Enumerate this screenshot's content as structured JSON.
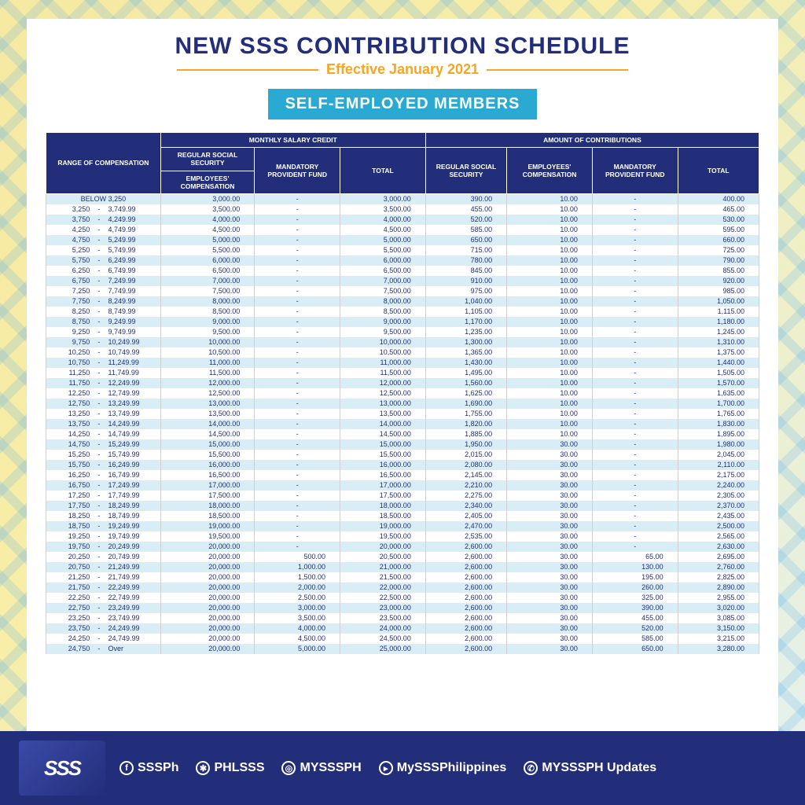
{
  "title": "NEW SSS CONTRIBUTION SCHEDULE",
  "subtitle": "Effective January 2021",
  "badge": "SELF-EMPLOYED MEMBERS",
  "colors": {
    "header_bg": "#232e7a",
    "header_fg": "#ffffff",
    "badge_bg": "#2aa9d2",
    "subtitle": "#f5a623",
    "row_alt": "#d8edf5",
    "row_bg": "#ffffff"
  },
  "headers": {
    "group_msc": "MONTHLY SALARY CREDIT",
    "group_contrib": "AMOUNT OF CONTRIBUTIONS",
    "range": "RANGE OF COMPENSATION",
    "rss": "REGULAR SOCIAL SECURITY",
    "ec": "EMPLOYEES' COMPENSATION",
    "mpf": "MANDATORY PROVIDENT FUND",
    "total": "TOTAL",
    "c_rss": "REGULAR SOCIAL SECURITY",
    "c_ec": "EMPLOYEES' COMPENSATION",
    "c_mpf": "MANDATORY PROVIDENT FUND",
    "c_total": "TOTAL"
  },
  "rows": [
    {
      "lo": "",
      "dash": "BELOW 3,250",
      "hi": "",
      "msc": "3,000.00",
      "mpf": "-",
      "mtot": "3,000.00",
      "rss": "390.00",
      "ec": "10.00",
      "cmpf": "-",
      "ctot": "400.00"
    },
    {
      "lo": "3,250",
      "dash": "-",
      "hi": "3,749.99",
      "msc": "3,500.00",
      "mpf": "-",
      "mtot": "3,500.00",
      "rss": "455.00",
      "ec": "10.00",
      "cmpf": "-",
      "ctot": "465.00"
    },
    {
      "lo": "3,750",
      "dash": "-",
      "hi": "4,249.99",
      "msc": "4,000.00",
      "mpf": "-",
      "mtot": "4,000.00",
      "rss": "520.00",
      "ec": "10.00",
      "cmpf": "-",
      "ctot": "530.00"
    },
    {
      "lo": "4,250",
      "dash": "-",
      "hi": "4,749.99",
      "msc": "4,500.00",
      "mpf": "-",
      "mtot": "4,500.00",
      "rss": "585.00",
      "ec": "10.00",
      "cmpf": "-",
      "ctot": "595.00"
    },
    {
      "lo": "4,750",
      "dash": "-",
      "hi": "5,249.99",
      "msc": "5,000.00",
      "mpf": "-",
      "mtot": "5,000.00",
      "rss": "650.00",
      "ec": "10.00",
      "cmpf": "-",
      "ctot": "660.00"
    },
    {
      "lo": "5,250",
      "dash": "-",
      "hi": "5,749.99",
      "msc": "5,500.00",
      "mpf": "-",
      "mtot": "5,500.00",
      "rss": "715.00",
      "ec": "10.00",
      "cmpf": "-",
      "ctot": "725.00"
    },
    {
      "lo": "5,750",
      "dash": "-",
      "hi": "6,249.99",
      "msc": "6,000.00",
      "mpf": "-",
      "mtot": "6,000.00",
      "rss": "780.00",
      "ec": "10.00",
      "cmpf": "-",
      "ctot": "790.00"
    },
    {
      "lo": "6,250",
      "dash": "-",
      "hi": "6,749.99",
      "msc": "6,500.00",
      "mpf": "-",
      "mtot": "6,500.00",
      "rss": "845.00",
      "ec": "10.00",
      "cmpf": "-",
      "ctot": "855.00"
    },
    {
      "lo": "6,750",
      "dash": "-",
      "hi": "7,249.99",
      "msc": "7,000.00",
      "mpf": "-",
      "mtot": "7,000.00",
      "rss": "910.00",
      "ec": "10.00",
      "cmpf": "-",
      "ctot": "920.00"
    },
    {
      "lo": "7,250",
      "dash": "-",
      "hi": "7,749.99",
      "msc": "7,500.00",
      "mpf": "-",
      "mtot": "7,500.00",
      "rss": "975.00",
      "ec": "10.00",
      "cmpf": "-",
      "ctot": "985.00"
    },
    {
      "lo": "7,750",
      "dash": "-",
      "hi": "8,249.99",
      "msc": "8,000.00",
      "mpf": "-",
      "mtot": "8,000.00",
      "rss": "1,040.00",
      "ec": "10.00",
      "cmpf": "-",
      "ctot": "1,050.00"
    },
    {
      "lo": "8,250",
      "dash": "-",
      "hi": "8,749.99",
      "msc": "8,500.00",
      "mpf": "-",
      "mtot": "8,500.00",
      "rss": "1,105.00",
      "ec": "10.00",
      "cmpf": "-",
      "ctot": "1,115.00"
    },
    {
      "lo": "8,750",
      "dash": "-",
      "hi": "9,249.99",
      "msc": "9,000.00",
      "mpf": "-",
      "mtot": "9,000.00",
      "rss": "1,170.00",
      "ec": "10.00",
      "cmpf": "-",
      "ctot": "1,180.00"
    },
    {
      "lo": "9,250",
      "dash": "-",
      "hi": "9,749.99",
      "msc": "9,500.00",
      "mpf": "-",
      "mtot": "9,500.00",
      "rss": "1,235.00",
      "ec": "10.00",
      "cmpf": "-",
      "ctot": "1,245.00"
    },
    {
      "lo": "9,750",
      "dash": "-",
      "hi": "10,249.99",
      "msc": "10,000.00",
      "mpf": "-",
      "mtot": "10,000.00",
      "rss": "1,300.00",
      "ec": "10.00",
      "cmpf": "-",
      "ctot": "1,310.00"
    },
    {
      "lo": "10,250",
      "dash": "-",
      "hi": "10,749.99",
      "msc": "10,500.00",
      "mpf": "-",
      "mtot": "10,500.00",
      "rss": "1,365.00",
      "ec": "10.00",
      "cmpf": "-",
      "ctot": "1,375.00"
    },
    {
      "lo": "10,750",
      "dash": "-",
      "hi": "11,249.99",
      "msc": "11,000.00",
      "mpf": "-",
      "mtot": "11,000.00",
      "rss": "1,430.00",
      "ec": "10.00",
      "cmpf": "-",
      "ctot": "1,440.00"
    },
    {
      "lo": "11,250",
      "dash": "-",
      "hi": "11,749.99",
      "msc": "11,500.00",
      "mpf": "-",
      "mtot": "11,500.00",
      "rss": "1,495.00",
      "ec": "10.00",
      "cmpf": "-",
      "ctot": "1,505.00"
    },
    {
      "lo": "11,750",
      "dash": "-",
      "hi": "12,249.99",
      "msc": "12,000.00",
      "mpf": "-",
      "mtot": "12,000.00",
      "rss": "1,560.00",
      "ec": "10.00",
      "cmpf": "-",
      "ctot": "1,570.00"
    },
    {
      "lo": "12,250",
      "dash": "-",
      "hi": "12,749.99",
      "msc": "12,500.00",
      "mpf": "-",
      "mtot": "12,500.00",
      "rss": "1,625.00",
      "ec": "10.00",
      "cmpf": "-",
      "ctot": "1,635.00"
    },
    {
      "lo": "12,750",
      "dash": "-",
      "hi": "13,249.99",
      "msc": "13,000.00",
      "mpf": "-",
      "mtot": "13,000.00",
      "rss": "1,690.00",
      "ec": "10.00",
      "cmpf": "-",
      "ctot": "1,700.00"
    },
    {
      "lo": "13,250",
      "dash": "-",
      "hi": "13,749.99",
      "msc": "13,500.00",
      "mpf": "-",
      "mtot": "13,500.00",
      "rss": "1,755.00",
      "ec": "10.00",
      "cmpf": "-",
      "ctot": "1,765.00"
    },
    {
      "lo": "13,750",
      "dash": "-",
      "hi": "14,249.99",
      "msc": "14,000.00",
      "mpf": "-",
      "mtot": "14,000.00",
      "rss": "1,820.00",
      "ec": "10.00",
      "cmpf": "-",
      "ctot": "1,830.00"
    },
    {
      "lo": "14,250",
      "dash": "-",
      "hi": "14,749.99",
      "msc": "14,500.00",
      "mpf": "-",
      "mtot": "14,500.00",
      "rss": "1,885.00",
      "ec": "10.00",
      "cmpf": "-",
      "ctot": "1,895.00"
    },
    {
      "lo": "14,750",
      "dash": "-",
      "hi": "15,249.99",
      "msc": "15,000.00",
      "mpf": "-",
      "mtot": "15,000.00",
      "rss": "1,950.00",
      "ec": "30.00",
      "cmpf": "-",
      "ctot": "1,980.00"
    },
    {
      "lo": "15,250",
      "dash": "-",
      "hi": "15,749.99",
      "msc": "15,500.00",
      "mpf": "-",
      "mtot": "15,500.00",
      "rss": "2,015.00",
      "ec": "30.00",
      "cmpf": "-",
      "ctot": "2,045.00"
    },
    {
      "lo": "15,750",
      "dash": "-",
      "hi": "16,249.99",
      "msc": "16,000.00",
      "mpf": "-",
      "mtot": "16,000.00",
      "rss": "2,080.00",
      "ec": "30.00",
      "cmpf": "-",
      "ctot": "2,110.00"
    },
    {
      "lo": "16,250",
      "dash": "-",
      "hi": "16,749.99",
      "msc": "16,500.00",
      "mpf": "-",
      "mtot": "16,500.00",
      "rss": "2,145.00",
      "ec": "30.00",
      "cmpf": "-",
      "ctot": "2,175.00"
    },
    {
      "lo": "16,750",
      "dash": "-",
      "hi": "17,249.99",
      "msc": "17,000.00",
      "mpf": "-",
      "mtot": "17,000.00",
      "rss": "2,210.00",
      "ec": "30.00",
      "cmpf": "-",
      "ctot": "2,240.00"
    },
    {
      "lo": "17,250",
      "dash": "-",
      "hi": "17,749.99",
      "msc": "17,500.00",
      "mpf": "-",
      "mtot": "17,500.00",
      "rss": "2,275.00",
      "ec": "30.00",
      "cmpf": "-",
      "ctot": "2,305.00"
    },
    {
      "lo": "17,750",
      "dash": "-",
      "hi": "18,249.99",
      "msc": "18,000.00",
      "mpf": "-",
      "mtot": "18,000.00",
      "rss": "2,340.00",
      "ec": "30.00",
      "cmpf": "-",
      "ctot": "2,370.00"
    },
    {
      "lo": "18,250",
      "dash": "-",
      "hi": "18,749.99",
      "msc": "18,500.00",
      "mpf": "-",
      "mtot": "18,500.00",
      "rss": "2,405.00",
      "ec": "30.00",
      "cmpf": "-",
      "ctot": "2,435.00"
    },
    {
      "lo": "18,750",
      "dash": "-",
      "hi": "19,249.99",
      "msc": "19,000.00",
      "mpf": "-",
      "mtot": "19,000.00",
      "rss": "2,470.00",
      "ec": "30.00",
      "cmpf": "-",
      "ctot": "2,500.00"
    },
    {
      "lo": "19,250",
      "dash": "-",
      "hi": "19,749.99",
      "msc": "19,500.00",
      "mpf": "-",
      "mtot": "19,500.00",
      "rss": "2,535.00",
      "ec": "30.00",
      "cmpf": "-",
      "ctot": "2,565.00"
    },
    {
      "lo": "19,750",
      "dash": "-",
      "hi": "20,249.99",
      "msc": "20,000.00",
      "mpf": "-",
      "mtot": "20,000.00",
      "rss": "2,600.00",
      "ec": "30.00",
      "cmpf": "-",
      "ctot": "2,630.00"
    },
    {
      "lo": "20,250",
      "dash": "-",
      "hi": "20,749.99",
      "msc": "20,000.00",
      "mpf": "500.00",
      "mtot": "20,500.00",
      "rss": "2,600.00",
      "ec": "30.00",
      "cmpf": "65.00",
      "ctot": "2,695.00"
    },
    {
      "lo": "20,750",
      "dash": "-",
      "hi": "21,249.99",
      "msc": "20,000.00",
      "mpf": "1,000.00",
      "mtot": "21,000.00",
      "rss": "2,600.00",
      "ec": "30.00",
      "cmpf": "130.00",
      "ctot": "2,760.00"
    },
    {
      "lo": "21,250",
      "dash": "-",
      "hi": "21,749.99",
      "msc": "20,000.00",
      "mpf": "1,500.00",
      "mtot": "21,500.00",
      "rss": "2,600.00",
      "ec": "30.00",
      "cmpf": "195.00",
      "ctot": "2,825.00"
    },
    {
      "lo": "21,750",
      "dash": "-",
      "hi": "22,249.99",
      "msc": "20,000.00",
      "mpf": "2,000.00",
      "mtot": "22,000.00",
      "rss": "2,600.00",
      "ec": "30.00",
      "cmpf": "260.00",
      "ctot": "2,890.00"
    },
    {
      "lo": "22,250",
      "dash": "-",
      "hi": "22,749.99",
      "msc": "20,000.00",
      "mpf": "2,500.00",
      "mtot": "22,500.00",
      "rss": "2,600.00",
      "ec": "30.00",
      "cmpf": "325.00",
      "ctot": "2,955.00"
    },
    {
      "lo": "22,750",
      "dash": "-",
      "hi": "23,249.99",
      "msc": "20,000.00",
      "mpf": "3,000.00",
      "mtot": "23,000.00",
      "rss": "2,600.00",
      "ec": "30.00",
      "cmpf": "390.00",
      "ctot": "3,020.00"
    },
    {
      "lo": "23,250",
      "dash": "-",
      "hi": "23,749.99",
      "msc": "20,000.00",
      "mpf": "3,500.00",
      "mtot": "23,500.00",
      "rss": "2,600.00",
      "ec": "30.00",
      "cmpf": "455.00",
      "ctot": "3,085.00"
    },
    {
      "lo": "23,750",
      "dash": "-",
      "hi": "24,249.99",
      "msc": "20,000.00",
      "mpf": "4,000.00",
      "mtot": "24,000.00",
      "rss": "2,600.00",
      "ec": "30.00",
      "cmpf": "520.00",
      "ctot": "3,150.00"
    },
    {
      "lo": "24,250",
      "dash": "-",
      "hi": "24,749.99",
      "msc": "20,000.00",
      "mpf": "4,500.00",
      "mtot": "24,500.00",
      "rss": "2,600.00",
      "ec": "30.00",
      "cmpf": "585.00",
      "ctot": "3,215.00"
    },
    {
      "lo": "24,750",
      "dash": "-",
      "hi": "Over",
      "msc": "20,000.00",
      "mpf": "5,000.00",
      "mtot": "25,000.00",
      "rss": "2,600.00",
      "ec": "30.00",
      "cmpf": "650.00",
      "ctot": "3,280.00"
    }
  ],
  "footer": {
    "logo_text": "SSS",
    "socials": [
      {
        "icon": "f",
        "handle": "SSSPh"
      },
      {
        "icon": "t",
        "handle": "PHLSSS"
      },
      {
        "icon": "ig",
        "handle": "MYSSSPH"
      },
      {
        "icon": "yt",
        "handle": "MySSSPhilippines"
      },
      {
        "icon": "v",
        "handle": "MYSSSPH Updates"
      }
    ]
  }
}
